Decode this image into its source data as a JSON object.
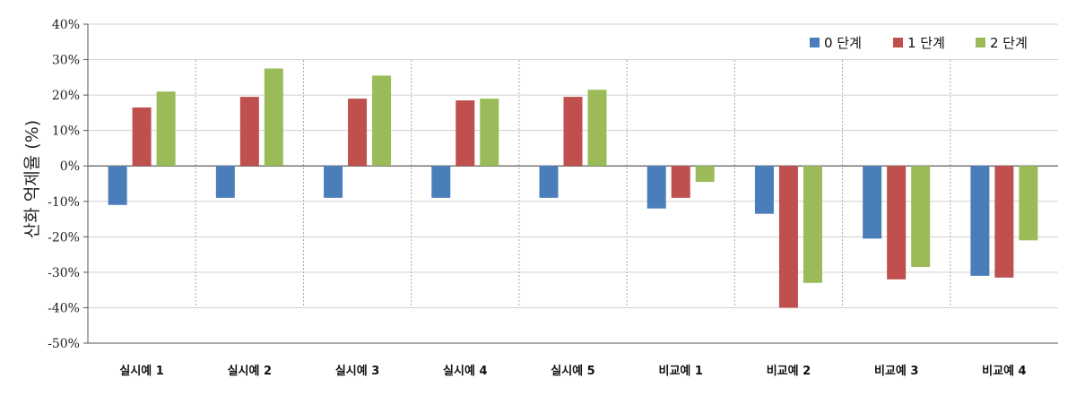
{
  "chart_data": {
    "type": "bar",
    "ylabel": "산화 억제율 (%)",
    "xlabel": "",
    "ylim": [
      -50,
      40
    ],
    "yticks": [
      40,
      30,
      20,
      10,
      0,
      -10,
      -20,
      -30,
      -40,
      -50
    ],
    "ytick_suffix": "%",
    "grid": true,
    "legend_position": "top-right",
    "categories": [
      "실시예 1",
      "실시예 2",
      "실시예 3",
      "실시예 4",
      "실시예 5",
      "비교예 1",
      "비교예 2",
      "비교예 3",
      "비교예 4"
    ],
    "series": [
      {
        "name": "0 단계",
        "color": "#4a7ebb",
        "values": [
          -11,
          -9,
          -9,
          -9,
          -9,
          -12,
          -13.5,
          -20.5,
          -31
        ]
      },
      {
        "name": "1 단계",
        "color": "#c0504d",
        "values": [
          16.5,
          19.5,
          19,
          18.5,
          19.5,
          -9,
          -40,
          -32,
          -31.5
        ]
      },
      {
        "name": "2 단계",
        "color": "#9bbb59",
        "values": [
          21,
          27.5,
          25.5,
          19,
          21.5,
          -4.5,
          -33,
          -28.5,
          -21
        ]
      }
    ]
  }
}
